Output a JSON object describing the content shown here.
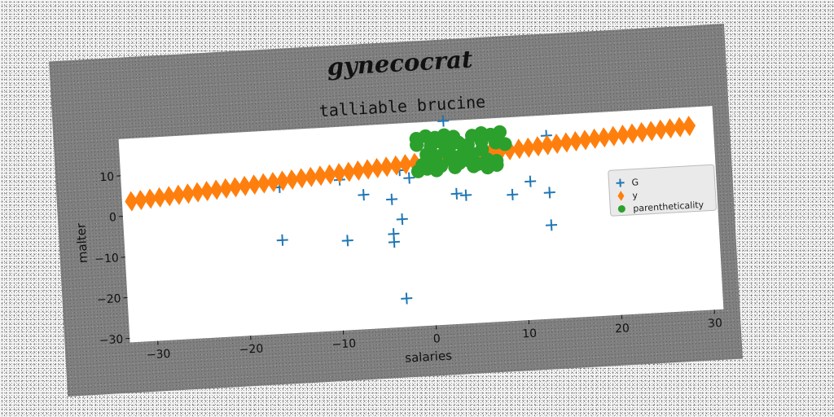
{
  "chart_data": {
    "type": "scatter",
    "suptitle": "gynecocrat",
    "title": "talliable brucine",
    "xlabel": "salaries",
    "ylabel": "malter",
    "xlim": [
      -33,
      31
    ],
    "ylim": [
      -31,
      19
    ],
    "xticks": [
      -30,
      -20,
      -10,
      0,
      10,
      20,
      30
    ],
    "yticks": [
      -30,
      -20,
      -10,
      0,
      10
    ],
    "grid": false,
    "legend_position": "center-right",
    "series": [
      {
        "name": "G",
        "marker": "plus",
        "color": "#1f77b4",
        "points": [
          [
            2,
            19
          ],
          [
            13,
            14
          ],
          [
            -12.5,
            7
          ],
          [
            -16,
            5
          ],
          [
            -9.5,
            6
          ],
          [
            -3,
            7.5
          ],
          [
            -2,
            5.5
          ],
          [
            -7,
            2
          ],
          [
            -4,
            0.5
          ],
          [
            3,
            1
          ],
          [
            4,
            0.5
          ],
          [
            9,
            0
          ],
          [
            11,
            3
          ],
          [
            13,
            0
          ],
          [
            -3,
            -4.5
          ],
          [
            -16,
            -8
          ],
          [
            -9,
            -9
          ],
          [
            -4,
            -8
          ],
          [
            -4,
            -10
          ],
          [
            13,
            -8
          ],
          [
            -3,
            -24
          ]
        ]
      },
      {
        "name": "y",
        "marker": "diamond",
        "color": "#ff7f0e",
        "points": [
          [
            -32,
            3.6
          ],
          [
            -30.98,
            3.78
          ],
          [
            -29.95,
            3.97
          ],
          [
            -28.93,
            4.15
          ],
          [
            -27.9,
            4.34
          ],
          [
            -26.88,
            4.52
          ],
          [
            -25.86,
            4.7
          ],
          [
            -24.83,
            4.89
          ],
          [
            -23.81,
            5.07
          ],
          [
            -22.79,
            5.25
          ],
          [
            -21.76,
            5.44
          ],
          [
            -20.74,
            5.62
          ],
          [
            -19.71,
            5.8
          ],
          [
            -18.69,
            5.99
          ],
          [
            -17.67,
            6.17
          ],
          [
            -16.64,
            6.36
          ],
          [
            -15.62,
            6.54
          ],
          [
            -14.6,
            6.72
          ],
          [
            -13.57,
            6.91
          ],
          [
            -12.55,
            7.09
          ],
          [
            -11.52,
            7.27
          ],
          [
            -10.5,
            7.46
          ],
          [
            -9.48,
            7.64
          ],
          [
            -8.45,
            7.82
          ],
          [
            -7.43,
            8.01
          ],
          [
            -6.4,
            8.19
          ],
          [
            -5.38,
            8.38
          ],
          [
            -4.36,
            8.56
          ],
          [
            -3.33,
            8.74
          ],
          [
            -2.31,
            8.93
          ],
          [
            -1.29,
            9.11
          ],
          [
            -0.26,
            9.29
          ],
          [
            0.76,
            9.48
          ],
          [
            1.79,
            9.66
          ],
          [
            2.81,
            9.84
          ],
          [
            3.83,
            10.03
          ],
          [
            4.86,
            10.21
          ],
          [
            5.88,
            10.39
          ],
          [
            6.9,
            10.58
          ],
          [
            7.93,
            10.76
          ],
          [
            8.95,
            10.95
          ],
          [
            9.98,
            11.13
          ],
          [
            11,
            11.31
          ],
          [
            12.02,
            11.5
          ],
          [
            13.05,
            11.68
          ],
          [
            14.07,
            11.86
          ],
          [
            15.1,
            12.05
          ],
          [
            16.12,
            12.23
          ],
          [
            17.14,
            12.41
          ],
          [
            18.17,
            12.6
          ],
          [
            19.19,
            12.78
          ],
          [
            20.21,
            12.97
          ],
          [
            21.24,
            13.15
          ],
          [
            22.26,
            13.33
          ],
          [
            23.29,
            13.52
          ],
          [
            24.31,
            13.7
          ],
          [
            25.33,
            13.88
          ],
          [
            26.36,
            14.07
          ],
          [
            27.38,
            14.25
          ],
          [
            28.4,
            14.43
          ]
        ]
      },
      {
        "name": "parentheticality",
        "marker": "circle",
        "color": "#2ca02c",
        "points": [
          [
            -1,
            15
          ],
          [
            0,
            15.5
          ],
          [
            1,
            15
          ],
          [
            2,
            15.5
          ],
          [
            3,
            15
          ],
          [
            5,
            15
          ],
          [
            6,
            15.5
          ],
          [
            7,
            15
          ],
          [
            8,
            15.5
          ],
          [
            -1,
            13.5
          ],
          [
            0.5,
            13
          ],
          [
            1.5,
            14
          ],
          [
            2.5,
            12.5
          ],
          [
            3.5,
            13.5
          ],
          [
            4.5,
            12.8
          ],
          [
            6,
            13.5
          ],
          [
            7.5,
            13
          ],
          [
            8.5,
            12.5
          ],
          [
            0,
            11
          ],
          [
            1,
            10.5
          ],
          [
            2,
            11.5
          ],
          [
            3,
            10
          ],
          [
            4,
            11
          ],
          [
            5,
            10.5
          ],
          [
            6,
            11.5
          ],
          [
            -0.5,
            8.5
          ],
          [
            0.5,
            9
          ],
          [
            1.5,
            8
          ],
          [
            2.5,
            9.5
          ],
          [
            3.5,
            8.5
          ],
          [
            4.5,
            9
          ],
          [
            5.5,
            8
          ],
          [
            6.5,
            9
          ],
          [
            7.5,
            8.5
          ],
          [
            -1,
            7
          ],
          [
            0,
            7.5
          ],
          [
            1,
            7
          ],
          [
            3,
            7.5
          ],
          [
            5,
            7.5
          ],
          [
            6.5,
            7
          ],
          [
            7.5,
            7.5
          ]
        ]
      }
    ]
  }
}
